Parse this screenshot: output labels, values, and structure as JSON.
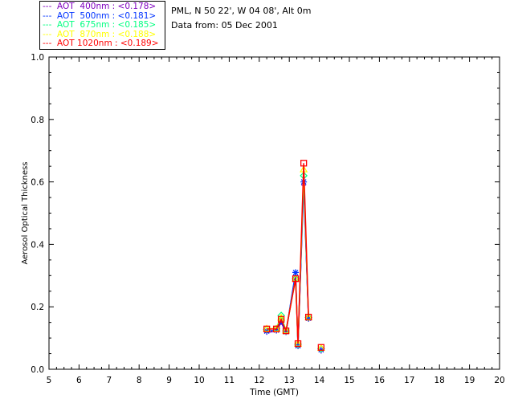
{
  "chart_data": {
    "type": "line",
    "title": "PML, N 50 22', W 04 08', Alt 0m",
    "subtitle": "Data from: 05 Dec 2001",
    "xlabel": "Time (GMT)",
    "ylabel": "Aerosol Optical Thickness",
    "xlim": [
      5,
      20
    ],
    "ylim": [
      0,
      1.0
    ],
    "xticks": [
      "5",
      "6",
      "7",
      "8",
      "9",
      "10",
      "11",
      "12",
      "13",
      "14",
      "15",
      "16",
      "17",
      "18",
      "19",
      "20"
    ],
    "yticks": [
      "0.0",
      "0.2",
      "0.4",
      "0.6",
      "0.8",
      "1.0"
    ],
    "x": [
      12.25,
      12.57,
      12.73,
      12.89,
      13.21,
      13.29,
      13.48,
      13.64,
      14.06
    ],
    "series": [
      {
        "name": "AOT  400nm : <0.178>",
        "color": "#7f00bf",
        "marker": "plus",
        "values": [
          0.118,
          0.122,
          0.15,
          0.118,
          0.3,
          0.072,
          0.59,
          0.16,
          0.058
        ]
      },
      {
        "name": "AOT  500nm : <0.181>",
        "color": "#0033ff",
        "marker": "asterisk",
        "values": [
          0.122,
          0.125,
          0.155,
          0.12,
          0.31,
          0.075,
          0.6,
          0.163,
          0.062
        ]
      },
      {
        "name": "AOT  675nm : <0.185>",
        "color": "#00ff80",
        "marker": "diamond",
        "values": [
          0.128,
          0.13,
          0.172,
          0.123,
          0.29,
          0.08,
          0.62,
          0.166,
          0.066
        ]
      },
      {
        "name": "AOT  870nm : <0.188>",
        "color": "#ffff00",
        "marker": "triangle",
        "values": [
          0.13,
          0.13,
          0.165,
          0.124,
          0.29,
          0.082,
          0.64,
          0.167,
          0.068
        ]
      },
      {
        "name": "AOT 1020nm : <0.189>",
        "color": "#ff0000",
        "marker": "square",
        "values": [
          0.129,
          0.129,
          0.16,
          0.123,
          0.29,
          0.082,
          0.66,
          0.167,
          0.07
        ]
      }
    ]
  }
}
